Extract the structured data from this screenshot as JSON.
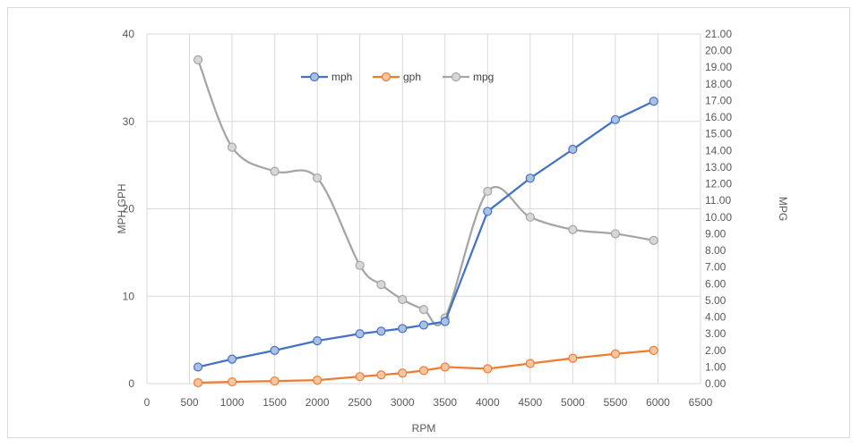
{
  "chart_data": {
    "type": "line",
    "title": "",
    "xlabel": "RPM",
    "ylabel": "MPH,GPH",
    "y2label": "MPG",
    "xlim": [
      0,
      6500
    ],
    "ylim": [
      0,
      40
    ],
    "y2lim": [
      0,
      21
    ],
    "x_ticks": [
      "0",
      "500",
      "1000",
      "1500",
      "2000",
      "2500",
      "3000",
      "3500",
      "4000",
      "4500",
      "5000",
      "5500",
      "6000",
      "6500"
    ],
    "y_ticks": [
      "0",
      "10",
      "20",
      "30",
      "40"
    ],
    "y2_ticks": [
      "0.00",
      "1.00",
      "2.00",
      "3.00",
      "4.00",
      "5.00",
      "6.00",
      "7.00",
      "8.00",
      "9.00",
      "10.00",
      "11.00",
      "12.00",
      "13.00",
      "14.00",
      "15.00",
      "16.00",
      "17.00",
      "18.00",
      "19.00",
      "20.00",
      "21.00"
    ],
    "grid": "vertical and horizontal",
    "legend_position": "top-center",
    "series": [
      {
        "name": "mph",
        "axis": "left",
        "color": "#4472c4",
        "smooth": false,
        "x": [
          600,
          1000,
          1500,
          2000,
          2500,
          2750,
          3000,
          3250,
          3500,
          4000,
          4500,
          5000,
          5500,
          5950
        ],
        "y": [
          1.9,
          2.8,
          3.8,
          4.9,
          5.7,
          6.0,
          6.3,
          6.7,
          7.1,
          19.7,
          23.5,
          26.8,
          30.2,
          32.3
        ]
      },
      {
        "name": "gph",
        "axis": "left",
        "color": "#ed7d31",
        "smooth": false,
        "x": [
          600,
          1000,
          1500,
          2000,
          2500,
          2750,
          3000,
          3250,
          3500,
          4000,
          4500,
          5000,
          5500,
          5950
        ],
        "y": [
          0.1,
          0.2,
          0.3,
          0.4,
          0.8,
          1.0,
          1.2,
          1.5,
          1.9,
          1.7,
          2.3,
          2.9,
          3.4,
          3.8
        ]
      },
      {
        "name": "mpg",
        "axis": "right",
        "color": "#a5a5a5",
        "smooth": true,
        "x": [
          600,
          1000,
          1500,
          2000,
          2500,
          2750,
          3000,
          3250,
          3500,
          4000,
          4500,
          5000,
          5500,
          5950
        ],
        "y": [
          19.45,
          14.2,
          12.75,
          12.35,
          7.1,
          5.95,
          5.05,
          4.45,
          3.95,
          11.55,
          10.0,
          9.25,
          9.0,
          8.6
        ]
      }
    ]
  }
}
